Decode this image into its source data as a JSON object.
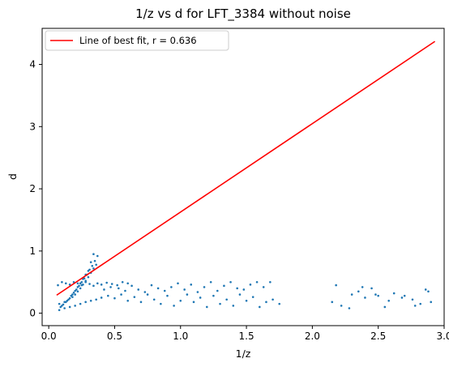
{
  "chart_data": {
    "type": "scatter",
    "title": "1/z vs d for LFT_3384 without noise",
    "xlabel": "1/z",
    "ylabel": "d",
    "xlim": [
      -0.05,
      3.0
    ],
    "ylim": [
      -0.2,
      4.58
    ],
    "xticks": [
      0.0,
      0.5,
      1.0,
      1.5,
      2.0,
      2.5,
      3.0
    ],
    "xtick_labels": [
      "0.0",
      "0.5",
      "1.0",
      "1.5",
      "2.0",
      "2.5",
      "3.0"
    ],
    "yticks": [
      0,
      1,
      2,
      3,
      4
    ],
    "ytick_labels": [
      "0",
      "1",
      "2",
      "3",
      "4"
    ],
    "grid": false,
    "legend": {
      "position": "top-left",
      "entries": [
        "Line of best fit, r = 0.636"
      ]
    },
    "series": [
      {
        "kind": "line",
        "name": "Line of best fit, r = 0.636",
        "color": "#ff0000",
        "x": [
          0.06,
          2.93
        ],
        "y": [
          0.29,
          4.37
        ]
      },
      {
        "kind": "scatter",
        "color": "#1f77b4",
        "x": [
          0.08,
          0.12,
          0.15,
          0.18,
          0.2,
          0.22,
          0.24,
          0.26,
          0.28,
          0.3,
          0.32,
          0.34,
          0.36,
          0.1,
          0.14,
          0.17,
          0.19,
          0.21,
          0.23,
          0.25,
          0.27,
          0.29,
          0.31,
          0.33,
          0.35,
          0.37,
          0.09,
          0.11,
          0.13,
          0.16,
          0.18,
          0.2,
          0.22,
          0.24,
          0.26,
          0.28,
          0.3,
          0.32,
          0.34,
          0.07,
          0.1,
          0.13,
          0.16,
          0.19,
          0.22,
          0.25,
          0.28,
          0.31,
          0.34,
          0.37,
          0.4,
          0.44,
          0.48,
          0.52,
          0.56,
          0.6,
          0.08,
          0.12,
          0.16,
          0.2,
          0.24,
          0.28,
          0.32,
          0.36,
          0.4,
          0.45,
          0.5,
          0.55,
          0.6,
          0.65,
          0.7,
          0.75,
          0.8,
          0.85,
          0.9,
          0.95,
          1.0,
          1.05,
          1.1,
          1.15,
          1.2,
          1.25,
          1.3,
          1.35,
          1.4,
          1.45,
          1.5,
          1.55,
          1.6,
          1.65,
          1.7,
          1.75,
          0.42,
          0.47,
          0.53,
          0.58,
          0.63,
          0.68,
          0.73,
          0.78,
          0.83,
          0.88,
          0.93,
          0.98,
          1.03,
          1.08,
          1.13,
          1.18,
          1.23,
          1.28,
          1.33,
          1.38,
          1.43,
          1.48,
          1.53,
          1.58,
          1.63,
          1.68,
          2.15,
          2.22,
          2.3,
          2.35,
          2.4,
          2.45,
          2.5,
          2.55,
          2.62,
          2.7,
          2.76,
          2.82,
          2.86,
          2.9,
          2.18,
          2.28,
          2.38,
          2.48,
          2.58,
          2.68,
          2.78,
          2.88
        ],
        "y": [
          0.15,
          0.18,
          0.22,
          0.26,
          0.3,
          0.35,
          0.4,
          0.46,
          0.52,
          0.58,
          0.65,
          0.72,
          0.78,
          0.12,
          0.2,
          0.28,
          0.33,
          0.38,
          0.44,
          0.5,
          0.56,
          0.62,
          0.7,
          0.76,
          0.84,
          0.92,
          0.1,
          0.14,
          0.18,
          0.24,
          0.3,
          0.36,
          0.42,
          0.48,
          0.55,
          0.62,
          0.68,
          0.82,
          0.95,
          0.45,
          0.5,
          0.48,
          0.46,
          0.5,
          0.48,
          0.45,
          0.5,
          0.47,
          0.44,
          0.48,
          0.46,
          0.49,
          0.47,
          0.45,
          0.5,
          0.48,
          0.05,
          0.08,
          0.1,
          0.12,
          0.15,
          0.18,
          0.2,
          0.22,
          0.25,
          0.28,
          0.24,
          0.3,
          0.2,
          0.26,
          0.18,
          0.3,
          0.22,
          0.15,
          0.28,
          0.12,
          0.2,
          0.3,
          0.18,
          0.25,
          0.1,
          0.28,
          0.15,
          0.22,
          0.12,
          0.3,
          0.2,
          0.26,
          0.1,
          0.18,
          0.22,
          0.15,
          0.38,
          0.42,
          0.4,
          0.36,
          0.44,
          0.38,
          0.34,
          0.45,
          0.4,
          0.36,
          0.42,
          0.48,
          0.38,
          0.46,
          0.34,
          0.42,
          0.5,
          0.36,
          0.44,
          0.5,
          0.4,
          0.38,
          0.46,
          0.5,
          0.42,
          0.5,
          0.18,
          0.12,
          0.3,
          0.35,
          0.25,
          0.4,
          0.28,
          0.1,
          0.32,
          0.28,
          0.22,
          0.15,
          0.38,
          0.18,
          0.45,
          0.08,
          0.42,
          0.3,
          0.2,
          0.25,
          0.12,
          0.35
        ]
      }
    ]
  }
}
